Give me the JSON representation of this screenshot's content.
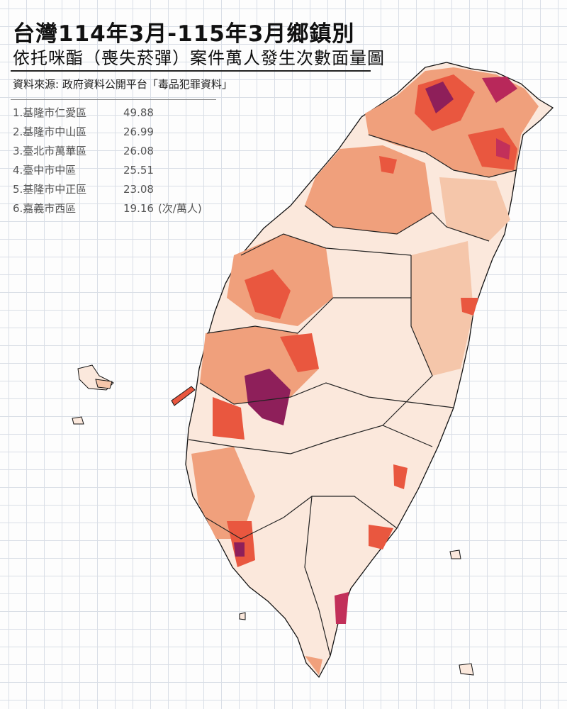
{
  "header": {
    "title": "台灣114年3月-115年3月鄉鎮別",
    "subtitle": "依托咪酯（喪失菸彈）案件萬人發生次數面量圖",
    "source": "資料來源: 政府資料公開平台「毒品犯罪資料」"
  },
  "ranking": {
    "items": [
      {
        "name": "1.基隆市仁愛區",
        "value": 49.88
      },
      {
        "name": "2.基隆市中山區",
        "value": 26.99
      },
      {
        "name": "3.臺北市萬華區",
        "value": 26.08
      },
      {
        "name": "4.臺中市中區",
        "value": 25.51
      },
      {
        "name": "5.基隆市中正區",
        "value": 23.08
      },
      {
        "name": "6.嘉義市西區",
        "value": 19.16
      }
    ],
    "unit": "(次/萬人)"
  }
}
